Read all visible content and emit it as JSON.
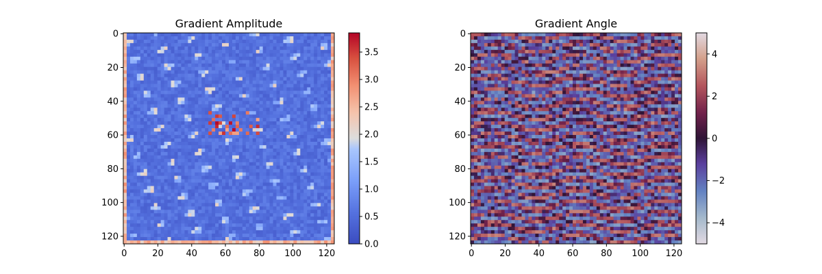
{
  "chart_data": [
    {
      "type": "heatmap",
      "title": "Gradient Amplitude",
      "xlabel": "",
      "ylabel": "",
      "x_range": [
        0,
        124
      ],
      "y_range": [
        0,
        124
      ],
      "xticks": [
        0,
        20,
        40,
        60,
        80,
        100,
        120
      ],
      "yticks": [
        0,
        20,
        40,
        60,
        80,
        100,
        120
      ],
      "colormap": "coolwarm",
      "colorbar": {
        "min": 0.0,
        "max": 3.85,
        "ticks": [
          "0.0",
          "0.5",
          "1.0",
          "1.5",
          "2.0",
          "2.5",
          "3.0",
          "3.5"
        ]
      }
    },
    {
      "type": "heatmap",
      "title": "Gradient Angle",
      "xlabel": "",
      "ylabel": "",
      "x_range": [
        0,
        124
      ],
      "y_range": [
        0,
        124
      ],
      "xticks": [
        0,
        20,
        40,
        60,
        80,
        100,
        120
      ],
      "yticks": [
        0,
        20,
        40,
        60,
        80,
        100,
        120
      ],
      "colormap": "twilight",
      "colorbar": {
        "min": -5,
        "max": 5,
        "ticks": [
          "−4",
          "−2",
          "0",
          "2",
          "4"
        ]
      }
    }
  ],
  "colors": {
    "coolwarm_low": "#3b4cc0",
    "coolwarm_mid": "#dddddd",
    "coolwarm_high": "#b40426",
    "twilight_low": "#e2d9e2",
    "twilight_mid": "#2f1436",
    "twilight_high": "#e2d9e2"
  }
}
